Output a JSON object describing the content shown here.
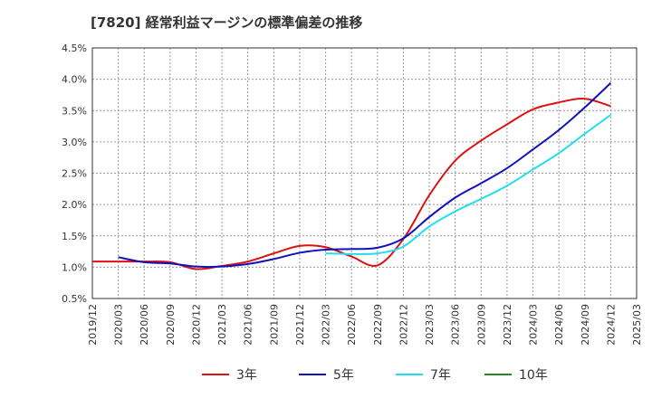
{
  "chart_data": {
    "type": "line",
    "title": "[7820]  経常利益マージンの標準偏差の推移",
    "xlabel": "",
    "ylabel": "",
    "x": [
      "2019/12",
      "2020/03",
      "2020/06",
      "2020/09",
      "2020/12",
      "2021/03",
      "2021/06",
      "2021/09",
      "2021/12",
      "2022/03",
      "2022/06",
      "2022/09",
      "2022/12",
      "2023/03",
      "2023/06",
      "2023/09",
      "2023/12",
      "2024/03",
      "2024/06",
      "2024/09",
      "2024/12",
      "2025/03"
    ],
    "y_ticks": [
      "0.5%",
      "1.0%",
      "1.5%",
      "2.0%",
      "2.5%",
      "3.0%",
      "3.5%",
      "4.0%",
      "4.5%"
    ],
    "ylim": [
      0.5,
      4.5
    ],
    "grid": true,
    "legend_position": "bottom",
    "series": [
      {
        "name": "3年",
        "color": "#dd1111",
        "values": [
          1.09,
          1.09,
          1.09,
          1.08,
          0.97,
          1.02,
          1.09,
          1.22,
          1.34,
          1.32,
          1.17,
          1.03,
          1.45,
          2.15,
          2.7,
          3.02,
          3.28,
          3.52,
          3.63,
          3.69,
          3.57,
          null
        ]
      },
      {
        "name": "5年",
        "color": "#1111bb",
        "values": [
          null,
          1.16,
          1.08,
          1.06,
          1.01,
          1.01,
          1.05,
          1.13,
          1.23,
          1.28,
          1.29,
          1.31,
          1.46,
          1.8,
          2.11,
          2.34,
          2.58,
          2.88,
          3.19,
          3.55,
          3.94,
          null
        ]
      },
      {
        "name": "7年",
        "color": "#22ddee",
        "values": [
          null,
          null,
          null,
          null,
          null,
          null,
          null,
          null,
          null,
          1.22,
          1.21,
          1.22,
          1.33,
          1.65,
          1.89,
          2.09,
          2.3,
          2.56,
          2.82,
          3.13,
          3.43,
          null
        ]
      },
      {
        "name": "10年",
        "color": "#228822",
        "values": [
          null,
          null,
          null,
          null,
          null,
          null,
          null,
          null,
          null,
          null,
          null,
          null,
          null,
          null,
          null,
          null,
          null,
          null,
          null,
          null,
          null,
          null
        ]
      }
    ]
  }
}
